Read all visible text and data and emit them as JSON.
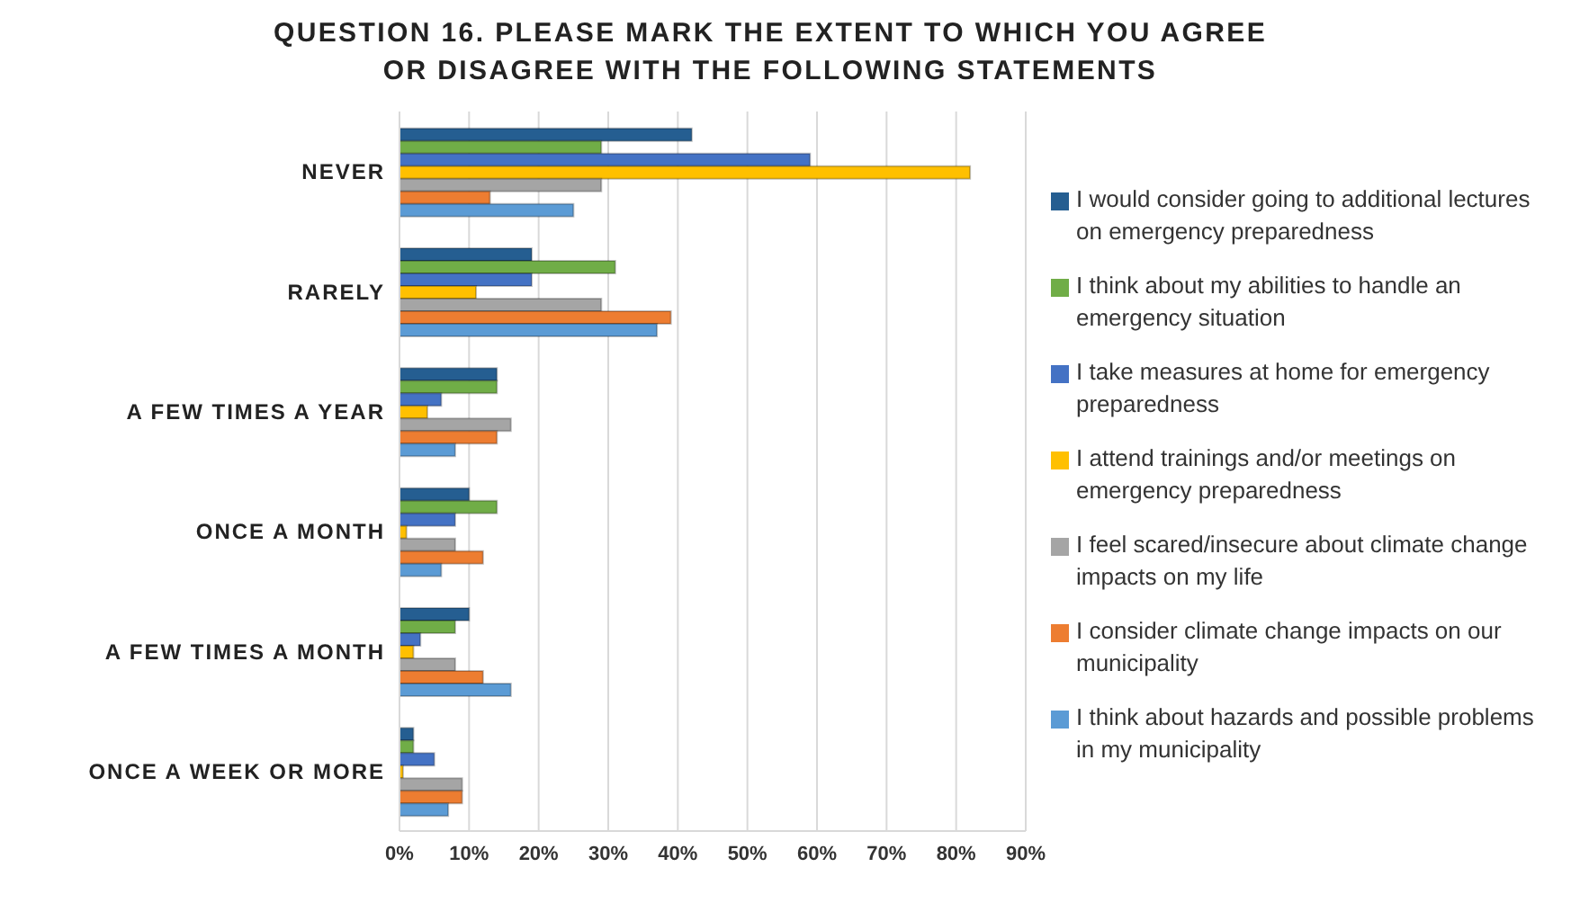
{
  "chart_data": {
    "type": "bar",
    "orientation": "horizontal",
    "title": "QUESTION 16. PLEASE MARK THE EXTENT TO WHICH YOU AGREE OR DISAGREE WITH THE FOLLOWING STATEMENTS",
    "categories": [
      "NEVER",
      "RARELY",
      "A FEW TIMES A YEAR",
      "ONCE A MONTH",
      "A FEW TIMES A MONTH",
      "ONCE A WEEK OR MORE"
    ],
    "series": [
      {
        "name": "I would consider going to additional lectures on emergency preparedness",
        "color": "#255e91",
        "values": [
          42,
          19,
          14,
          10,
          10,
          2
        ]
      },
      {
        "name": "I think about my abilities to handle an emergency situation",
        "color": "#70ad47",
        "values": [
          29,
          31,
          14,
          14,
          8,
          2
        ]
      },
      {
        "name": "I take measures at home for emergency preparedness",
        "color": "#4472c4",
        "values": [
          59,
          19,
          6,
          8,
          3,
          5
        ]
      },
      {
        "name": "I attend trainings and/or meetings on emergency preparedness",
        "color": "#ffc000",
        "values": [
          82,
          11,
          4,
          1,
          2,
          0.5
        ]
      },
      {
        "name": "I feel scared/insecure about climate change impacts on my life",
        "color": "#a5a5a5",
        "values": [
          29,
          29,
          16,
          8,
          8,
          9
        ]
      },
      {
        "name": "I consider climate change impacts on our municipality",
        "color": "#ed7d31",
        "values": [
          13,
          39,
          14,
          12,
          12,
          9
        ]
      },
      {
        "name": "I think about hazards and possible problems in my municipality",
        "color": "#5b9bd5",
        "values": [
          25,
          37,
          8,
          6,
          16,
          7
        ]
      }
    ],
    "xlim": [
      0,
      90
    ],
    "xticks": [
      {
        "value": 0,
        "label": "0%"
      },
      {
        "value": 10,
        "label": "10%"
      },
      {
        "value": 20,
        "label": "20%"
      },
      {
        "value": 30,
        "label": "30%"
      },
      {
        "value": 40,
        "label": "40%"
      },
      {
        "value": 50,
        "label": "50%"
      },
      {
        "value": 60,
        "label": "60%"
      },
      {
        "value": 70,
        "label": "70%"
      },
      {
        "value": 80,
        "label": "80%"
      },
      {
        "value": 90,
        "label": "90%"
      }
    ],
    "grid": "x",
    "legend": "right"
  }
}
